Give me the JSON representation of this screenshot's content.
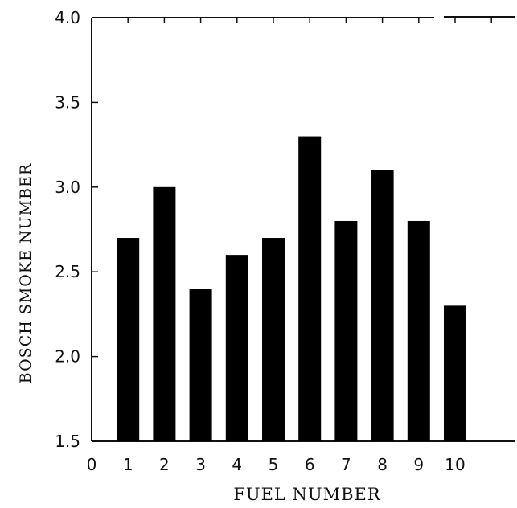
{
  "chart_data": {
    "type": "bar",
    "xlabel": "FUEL NUMBER",
    "ylabel": "BOSCH SMOKE NUMBER",
    "categories": [
      "1",
      "2",
      "3",
      "4",
      "5",
      "6",
      "7",
      "8",
      "9",
      "10"
    ],
    "values": [
      2.7,
      3.0,
      2.4,
      2.6,
      2.7,
      3.3,
      2.8,
      3.1,
      2.8,
      2.3
    ],
    "xlim": [
      0,
      10
    ],
    "xticks": [
      "0",
      "1",
      "2",
      "3",
      "4",
      "5",
      "6",
      "7",
      "8",
      "9",
      "10"
    ],
    "ylim": [
      1.5,
      4.0
    ],
    "yticks": [
      "1.5",
      "2.0",
      "2.5",
      "3.0",
      "3.5",
      "4.0"
    ],
    "grid": false,
    "colors": {
      "bar": "#000000",
      "axis": "#111111",
      "background": "#ffffff"
    }
  }
}
